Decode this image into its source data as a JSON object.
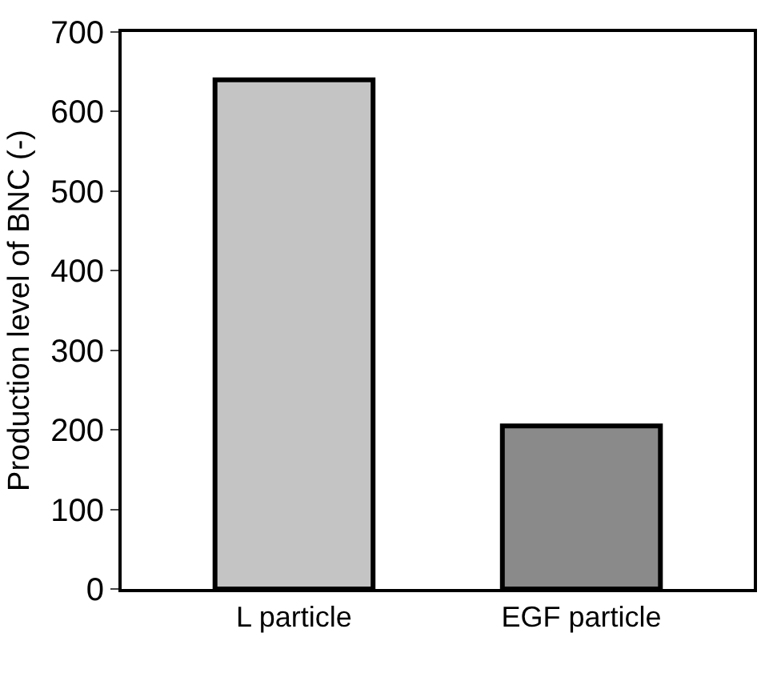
{
  "chart_data": {
    "type": "bar",
    "categories": [
      "L particle",
      "EGF particle"
    ],
    "values": [
      640,
      205
    ],
    "colors": [
      "#c4c4c4",
      "#8a8a8a"
    ],
    "ylabel": "Production level of BNC (-)",
    "ylim": [
      0,
      700
    ],
    "yticks": [
      0,
      100,
      200,
      300,
      400,
      500,
      600,
      700
    ],
    "grid": false
  }
}
